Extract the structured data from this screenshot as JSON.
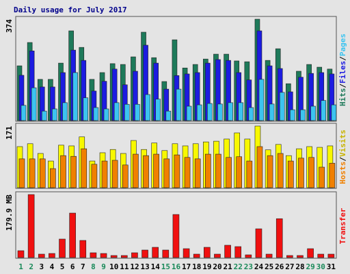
{
  "title": "Daily usage for July 2017",
  "chart_data": [
    {
      "type": "bar",
      "ylim": [
        0,
        374
      ],
      "yticks": [
        374
      ],
      "legend_separator": "/",
      "series": [
        {
          "name": "Hits",
          "color": "#1e7a5a",
          "values": [
            202,
            288,
            152,
            152,
            212,
            331,
            270,
            152,
            177,
            210,
            207,
            235,
            326,
            232,
            144,
            298,
            194,
            207,
            227,
            245,
            245,
            220,
            217,
            374,
            222,
            265,
            136,
            182,
            207,
            197,
            190
          ]
        },
        {
          "name": "Files",
          "color": "#1c1ce0",
          "values": [
            167,
            257,
            124,
            124,
            177,
            260,
            222,
            109,
            145,
            190,
            132,
            182,
            278,
            212,
            116,
            166,
            172,
            177,
            212,
            225,
            222,
            177,
            150,
            331,
            202,
            192,
            106,
            160,
            174,
            177,
            172
          ]
        },
        {
          "name": "Pages",
          "color": "#3cc4f0",
          "values": [
            56,
            121,
            35,
            43,
            66,
            177,
            84,
            48,
            43,
            66,
            60,
            60,
            96,
            79,
            35,
            116,
            53,
            58,
            63,
            61,
            66,
            66,
            48,
            152,
            61,
            104,
            40,
            40,
            53,
            74,
            58
          ]
        }
      ]
    },
    {
      "type": "bar",
      "ylim": [
        0,
        171
      ],
      "yticks": [
        171
      ],
      "legend_separator": "/",
      "series": [
        {
          "name": "Hosts",
          "color": "#f08000",
          "values": [
            80,
            80,
            80,
            53,
            89,
            87,
            108,
            65,
            74,
            76,
            63,
            93,
            89,
            93,
            80,
            91,
            84,
            80,
            93,
            93,
            84,
            86,
            74,
            114,
            89,
            95,
            74,
            82,
            84,
            57,
            68
          ]
        },
        {
          "name": "Visits",
          "color": "#f8f800",
          "values": [
            114,
            122,
            95,
            74,
            118,
            116,
            141,
            74,
            97,
            106,
            95,
            131,
            106,
            124,
            103,
            122,
            116,
            122,
            127,
            129,
            135,
            152,
            135,
            171,
            105,
            120,
            89,
            108,
            114,
            112,
            116
          ]
        }
      ]
    },
    {
      "type": "bar",
      "ylim": [
        0,
        179.9
      ],
      "yticks": [
        {
          "value": 179.9,
          "label": "179.9 MB"
        }
      ],
      "categories": [
        "1",
        "2",
        "3",
        "4",
        "5",
        "6",
        "7",
        "8",
        "9",
        "10",
        "11",
        "12",
        "13",
        "14",
        "15",
        "16",
        "17",
        "18",
        "19",
        "20",
        "21",
        "22",
        "23",
        "24",
        "25",
        "26",
        "27",
        "28",
        "29",
        "30",
        "31"
      ],
      "category_colors": [
        "#1a8a5a",
        "#1a8a5a",
        "#000",
        "#000",
        "#000",
        "#000",
        "#000",
        "#1a8a5a",
        "#1a8a5a",
        "#000",
        "#000",
        "#000",
        "#000",
        "#000",
        "#1a8a5a",
        "#1a8a5a",
        "#000",
        "#000",
        "#000",
        "#000",
        "#000",
        "#1a8a5a",
        "#1a8a5a",
        "#000",
        "#000",
        "#000",
        "#000",
        "#000",
        "#1a8a5a",
        "#1a8a5a",
        "#000"
      ],
      "series": [
        {
          "name": "Transfer",
          "color": "#f01010",
          "values": [
            19.6,
            179.9,
            9.8,
            11.7,
            52.8,
            127,
            48.9,
            13.7,
            11.7,
            5.9,
            5.9,
            13.7,
            21.5,
            29.3,
            21.5,
            123,
            25.4,
            9.8,
            29.3,
            9.8,
            35.2,
            31.3,
            7.8,
            82.1,
            9.8,
            111,
            5.9,
            5.9,
            25.4,
            9.8,
            9.8
          ]
        }
      ]
    }
  ]
}
